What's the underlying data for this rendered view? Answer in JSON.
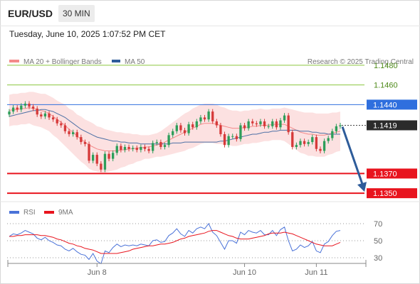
{
  "header": {
    "symbol": "EUR/USD",
    "timeframe": "30 MIN",
    "datetime": "Tuesday, June 10, 2025 1:07:52 PM CET"
  },
  "colors": {
    "ma20": "#f48a8a",
    "ma50": "#2e5c9a",
    "bollinger_fill": "#fbdada",
    "candle_up": "#2e9e5a",
    "candle_down": "#d63a3a",
    "resistance_green": "#8cc63f",
    "pivot_blue": "#2f6fde",
    "support_red": "#e8141e",
    "arrow": "#2e5c9a",
    "rsi": "#4a72d8",
    "rsi_ma": "#e8141e"
  },
  "chart_data": [
    {
      "type": "candlestick",
      "title": "",
      "legend": [
        {
          "name": "MA 20 + Bollinger Bands",
          "color": "#f48a8a"
        },
        {
          "name": "MA 50",
          "color": "#2e5c9a"
        }
      ],
      "watermark": "Research © 2025 Trading Central",
      "x_ticks": [
        "Jun 8",
        "Jun 10",
        "Jun 11"
      ],
      "ylim": [
        1.134,
        1.1485
      ],
      "levels": [
        {
          "value": 1.148,
          "label": "1.1480",
          "kind": "resistance"
        },
        {
          "value": 1.146,
          "label": "1.1460",
          "kind": "resistance"
        },
        {
          "value": 1.144,
          "label": "1.1440",
          "kind": "pivot"
        },
        {
          "value": 1.137,
          "label": "1.1370",
          "kind": "support"
        },
        {
          "value": 1.135,
          "label": "1.1350",
          "kind": "support"
        }
      ],
      "last_price": {
        "value": 1.1419,
        "label": "1.1419"
      },
      "forecast": {
        "from": 1.1419,
        "to": 1.135,
        "direction": "down"
      },
      "series": [
        {
          "name": "Price",
          "closes": [
            1.1433,
            1.1437,
            1.1435,
            1.1439,
            1.1441,
            1.1438,
            1.1436,
            1.143,
            1.1428,
            1.1431,
            1.1427,
            1.1425,
            1.1421,
            1.1419,
            1.1413,
            1.141,
            1.1412,
            1.1407,
            1.1402,
            1.14,
            1.1383,
            1.1389,
            1.138,
            1.1374,
            1.139,
            1.1385,
            1.1391,
            1.1398,
            1.1394,
            1.1397,
            1.1395,
            1.1396,
            1.1394,
            1.1397,
            1.1395,
            1.1393,
            1.1401,
            1.1402,
            1.1397,
            1.1399,
            1.1409,
            1.1413,
            1.1419,
            1.1414,
            1.1411,
            1.142,
            1.1417,
            1.1423,
            1.1427,
            1.1425,
            1.1433,
            1.1423,
            1.1419,
            1.141,
            1.1399,
            1.1408,
            1.1408,
            1.1405,
            1.1419,
            1.1416,
            1.1423,
            1.1421,
            1.142,
            1.1423,
            1.1418,
            1.1418,
            1.1423,
            1.1417,
            1.1424,
            1.1429,
            1.1412,
            1.1397,
            1.1399,
            1.1403,
            1.14,
            1.1402,
            1.1407,
            1.1395,
            1.1393,
            1.1403,
            1.1406,
            1.1413,
            1.1418,
            1.1419
          ]
        },
        {
          "name": "MA 50",
          "values": [
            1.1428,
            1.1429,
            1.143,
            1.1431,
            1.1432,
            1.1433,
            1.1434,
            1.1434,
            1.1435,
            1.1435,
            1.1434,
            1.1433,
            1.1431,
            1.1429,
            1.1427,
            1.1424,
            1.1421,
            1.1418,
            1.1415,
            1.1413,
            1.1411,
            1.1409,
            1.1407,
            1.1406,
            1.1405,
            1.1404,
            1.1403,
            1.1403,
            1.1402,
            1.1402,
            1.1401,
            1.1401,
            1.1401,
            1.14,
            1.14,
            1.14,
            1.14,
            1.14,
            1.14,
            1.14,
            1.14,
            1.1401,
            1.1401,
            1.1401,
            1.1402,
            1.1402,
            1.1402,
            1.1402,
            1.1402,
            1.1402,
            1.1402,
            1.1402,
            1.1402,
            1.1403,
            1.1403,
            1.1404,
            1.1405,
            1.1406,
            1.1407,
            1.1408,
            1.1409,
            1.141,
            1.141,
            1.1411,
            1.1412,
            1.1412,
            1.1413,
            1.1413,
            1.1414,
            1.1414,
            1.1414,
            1.1414,
            1.1414,
            1.1413,
            1.1413,
            1.1413,
            1.1412,
            1.1412,
            1.1411,
            1.1411,
            1.141,
            1.141,
            1.141,
            1.141
          ]
        },
        {
          "name": "MA 20",
          "values": [
            1.1434,
            1.1435,
            1.1435,
            1.1436,
            1.1436,
            1.1437,
            1.1436,
            1.1435,
            1.1434,
            1.1433,
            1.1431,
            1.1428,
            1.1425,
            1.1422,
            1.1419,
            1.1415,
            1.1412,
            1.1408,
            1.1405,
            1.1402,
            1.1399,
            1.1397,
            1.1395,
            1.1394,
            1.1393,
            1.1393,
            1.1393,
            1.1393,
            1.1394,
            1.1394,
            1.1395,
            1.1395,
            1.1396,
            1.1396,
            1.1397,
            1.1397,
            1.1398,
            1.1399,
            1.14,
            1.1402,
            1.1404,
            1.1406,
            1.1408,
            1.141,
            1.1412,
            1.1414,
            1.1416,
            1.1418,
            1.142,
            1.1421,
            1.1421,
            1.1421,
            1.142,
            1.1419,
            1.1418,
            1.1417,
            1.1416,
            1.1416,
            1.1416,
            1.1417,
            1.1417,
            1.1418,
            1.1418,
            1.1419,
            1.1419,
            1.1419,
            1.142,
            1.142,
            1.142,
            1.142,
            1.1418,
            1.1416,
            1.1414,
            1.1412,
            1.1411,
            1.141,
            1.141,
            1.1409,
            1.1409,
            1.1409,
            1.141,
            1.1411,
            1.1412,
            1.1413
          ]
        },
        {
          "name": "Bollinger half-width",
          "values": [
            0.0016,
            0.0016,
            0.0016,
            0.0016,
            0.0016,
            0.0016,
            0.0017,
            0.0017,
            0.0017,
            0.0018,
            0.0018,
            0.0019,
            0.0019,
            0.002,
            0.0021,
            0.0021,
            0.0022,
            0.0022,
            0.0023,
            0.0023,
            0.0024,
            0.0024,
            0.0023,
            0.0023,
            0.0022,
            0.0021,
            0.002,
            0.0019,
            0.0018,
            0.0017,
            0.0016,
            0.0015,
            0.0014,
            0.0013,
            0.0012,
            0.0012,
            0.0012,
            0.0012,
            0.0013,
            0.0014,
            0.0015,
            0.0016,
            0.0017,
            0.0018,
            0.0019,
            0.0019,
            0.002,
            0.002,
            0.002,
            0.002,
            0.002,
            0.002,
            0.002,
            0.0019,
            0.0019,
            0.0018,
            0.0018,
            0.0018,
            0.0017,
            0.0017,
            0.0017,
            0.0017,
            0.0017,
            0.0017,
            0.0016,
            0.0016,
            0.0016,
            0.0016,
            0.0016,
            0.0017,
            0.0018,
            0.0019,
            0.002,
            0.0021,
            0.0021,
            0.0022,
            0.0022,
            0.0022,
            0.0022,
            0.0022,
            0.0021,
            0.0021,
            0.002,
            0.002
          ]
        }
      ]
    },
    {
      "type": "line",
      "title": "",
      "legend": [
        {
          "name": "RSI",
          "color": "#4a72d8"
        },
        {
          "name": "9MA",
          "color": "#e8141e"
        }
      ],
      "ylim": [
        20,
        80
      ],
      "y_ticks": [
        "70",
        "50",
        "30"
      ],
      "series": [
        {
          "name": "RSI",
          "values": [
            55,
            58,
            57,
            59,
            62,
            60,
            58,
            53,
            51,
            54,
            50,
            48,
            45,
            44,
            40,
            38,
            41,
            37,
            34,
            33,
            28,
            35,
            26,
            23,
            38,
            36,
            42,
            46,
            43,
            45,
            44,
            45,
            44,
            46,
            45,
            44,
            50,
            51,
            48,
            49,
            56,
            59,
            64,
            58,
            55,
            62,
            59,
            64,
            66,
            64,
            70,
            60,
            56,
            48,
            40,
            50,
            50,
            47,
            60,
            57,
            62,
            60,
            59,
            62,
            57,
            57,
            62,
            56,
            63,
            66,
            50,
            38,
            40,
            45,
            42,
            44,
            49,
            38,
            36,
            46,
            49,
            56,
            61,
            62
          ]
        },
        {
          "name": "9MA",
          "values": [
            55,
            55,
            56,
            56,
            57,
            57,
            57,
            57,
            56,
            56,
            55,
            54,
            52,
            51,
            49,
            47,
            46,
            44,
            43,
            41,
            40,
            39,
            37,
            35,
            35,
            35,
            35,
            35,
            36,
            37,
            38,
            40,
            41,
            42,
            43,
            44,
            44,
            45,
            46,
            46,
            47,
            48,
            50,
            52,
            53,
            55,
            56,
            57,
            58,
            59,
            61,
            62,
            62,
            60,
            58,
            56,
            55,
            53,
            52,
            52,
            52,
            53,
            54,
            55,
            56,
            58,
            59,
            59,
            59,
            60,
            59,
            58,
            56,
            54,
            52,
            50,
            48,
            46,
            45,
            44,
            44,
            44,
            46,
            48
          ]
        }
      ]
    }
  ]
}
